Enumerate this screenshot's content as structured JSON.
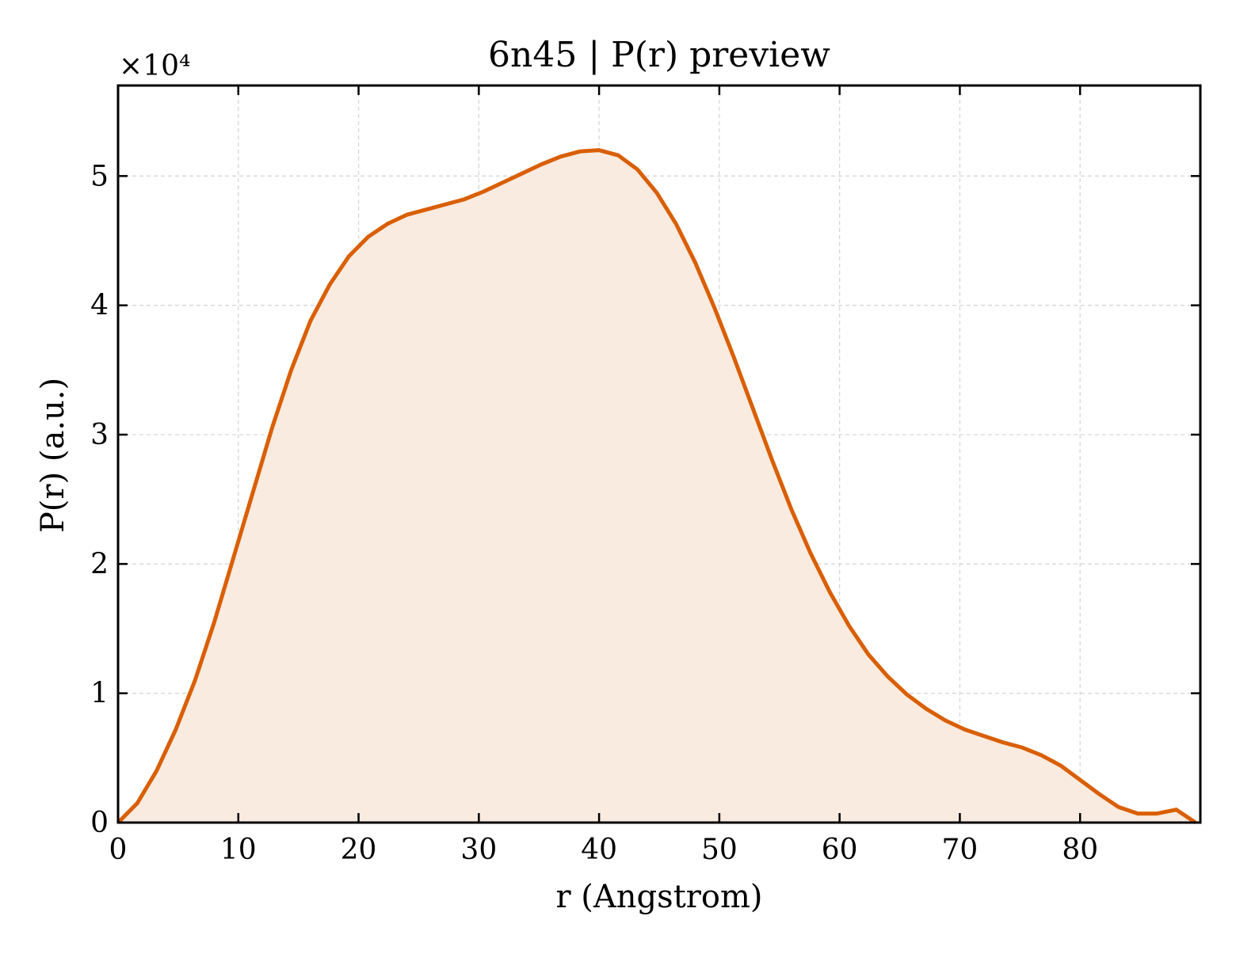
{
  "chart_data": {
    "type": "area",
    "title": "6n45 | P(r) preview",
    "xlabel": "r (Angstrom)",
    "ylabel": "P(r) (a.u.)",
    "y_multiplier": "×10⁴",
    "xlim": [
      0,
      90
    ],
    "ylim": [
      0,
      5.7
    ],
    "x_ticks": [
      0,
      10,
      20,
      30,
      40,
      50,
      60,
      70,
      80
    ],
    "x_tick_labels": [
      "0",
      "10",
      "20",
      "30",
      "40",
      "50",
      "60",
      "70",
      "80"
    ],
    "y_ticks": [
      0,
      1,
      2,
      3,
      4,
      5
    ],
    "y_tick_labels": [
      "0",
      "1",
      "2",
      "3",
      "4",
      "5"
    ],
    "grid": true,
    "line_color": "#d95f02",
    "fill_color": "#f9ebe0",
    "series": [
      {
        "x": [
          0,
          1.6,
          3.2,
          4.8,
          6.4,
          8.0,
          9.6,
          11.2,
          12.8,
          14.4,
          16.0,
          17.6,
          19.2,
          20.8,
          22.4,
          24.0,
          25.6,
          27.2,
          28.8,
          30.4,
          32.0,
          33.6,
          35.2,
          36.8,
          38.4,
          40.0,
          41.6,
          43.2,
          44.8,
          46.4,
          48.0,
          49.6,
          51.2,
          52.8,
          54.4,
          56.0,
          57.6,
          59.2,
          60.8,
          62.4,
          64.0,
          65.6,
          67.2,
          68.8,
          70.4,
          72.0,
          73.6,
          75.2,
          76.8,
          78.4,
          80.0,
          81.6,
          83.2,
          84.8,
          86.4,
          88.0,
          89.6
        ],
        "y": [
          0.0,
          0.15,
          0.4,
          0.72,
          1.1,
          1.55,
          2.05,
          2.55,
          3.05,
          3.5,
          3.88,
          4.16,
          4.38,
          4.53,
          4.63,
          4.7,
          4.74,
          4.78,
          4.82,
          4.88,
          4.95,
          5.02,
          5.09,
          5.15,
          5.19,
          5.2,
          5.16,
          5.05,
          4.87,
          4.63,
          4.33,
          3.98,
          3.6,
          3.2,
          2.8,
          2.42,
          2.08,
          1.78,
          1.52,
          1.3,
          1.13,
          0.99,
          0.88,
          0.79,
          0.72,
          0.67,
          0.62,
          0.58,
          0.52,
          0.44,
          0.33,
          0.22,
          0.12,
          0.07,
          0.07,
          0.1,
          0.0
        ]
      }
    ]
  }
}
